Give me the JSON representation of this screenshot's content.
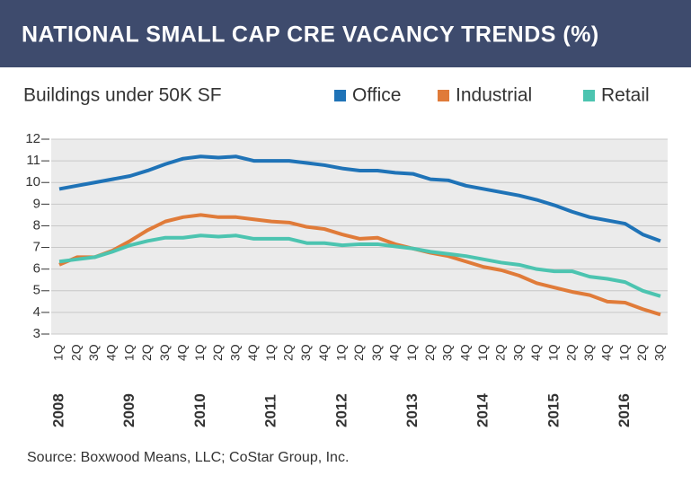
{
  "chart_data": {
    "type": "line",
    "title": "NATIONAL SMALL CAP CRE VACANCY TRENDS (%)",
    "subtitle": "Buildings under 50K SF",
    "source": "Source: Boxwood Means, LLC; CoStar Group, Inc.",
    "categories": [
      "1Q",
      "2Q",
      "3Q",
      "4Q",
      "1Q",
      "2Q",
      "3Q",
      "4Q",
      "1Q",
      "2Q",
      "3Q",
      "4Q",
      "1Q",
      "2Q",
      "3Q",
      "4Q",
      "1Q",
      "2Q",
      "3Q",
      "4Q",
      "1Q",
      "2Q",
      "3Q",
      "4Q",
      "1Q",
      "2Q",
      "3Q",
      "4Q",
      "1Q",
      "2Q",
      "3Q",
      "4Q",
      "1Q",
      "2Q",
      "3Q"
    ],
    "year_labels": [
      "2008",
      "2009",
      "2010",
      "2011",
      "2012",
      "2013",
      "2014",
      "2015",
      "2016"
    ],
    "ylim": [
      3,
      12
    ],
    "yticks": [
      3,
      4,
      5,
      6,
      7,
      8,
      9,
      10,
      11,
      12
    ],
    "grid": true,
    "series": [
      {
        "name": "Office",
        "color": "#1f73b7",
        "values": [
          9.7,
          9.85,
          10.0,
          10.15,
          10.3,
          10.55,
          10.85,
          11.1,
          11.2,
          11.15,
          11.2,
          11.0,
          11.0,
          11.0,
          10.9,
          10.8,
          10.65,
          10.55,
          10.55,
          10.45,
          10.4,
          10.15,
          10.1,
          9.85,
          9.7,
          9.55,
          9.4,
          9.2,
          8.95,
          8.65,
          8.4,
          8.25,
          8.1,
          7.6,
          7.3
        ]
      },
      {
        "name": "Industrial",
        "color": "#e07b39",
        "values": [
          6.2,
          6.55,
          6.55,
          6.85,
          7.3,
          7.8,
          8.2,
          8.4,
          8.5,
          8.4,
          8.4,
          8.3,
          8.2,
          8.15,
          7.95,
          7.85,
          7.6,
          7.4,
          7.45,
          7.15,
          6.95,
          6.75,
          6.6,
          6.35,
          6.1,
          5.95,
          5.7,
          5.35,
          5.15,
          4.95,
          4.8,
          4.5,
          4.45,
          4.15,
          3.9
        ]
      },
      {
        "name": "Retail",
        "color": "#4cc4b0",
        "values": [
          6.35,
          6.45,
          6.55,
          6.8,
          7.1,
          7.3,
          7.45,
          7.45,
          7.55,
          7.5,
          7.55,
          7.4,
          7.4,
          7.4,
          7.2,
          7.2,
          7.1,
          7.15,
          7.15,
          7.05,
          6.95,
          6.8,
          6.7,
          6.6,
          6.45,
          6.3,
          6.2,
          6.0,
          5.9,
          5.9,
          5.65,
          5.55,
          5.4,
          5.0,
          4.75
        ]
      }
    ]
  }
}
